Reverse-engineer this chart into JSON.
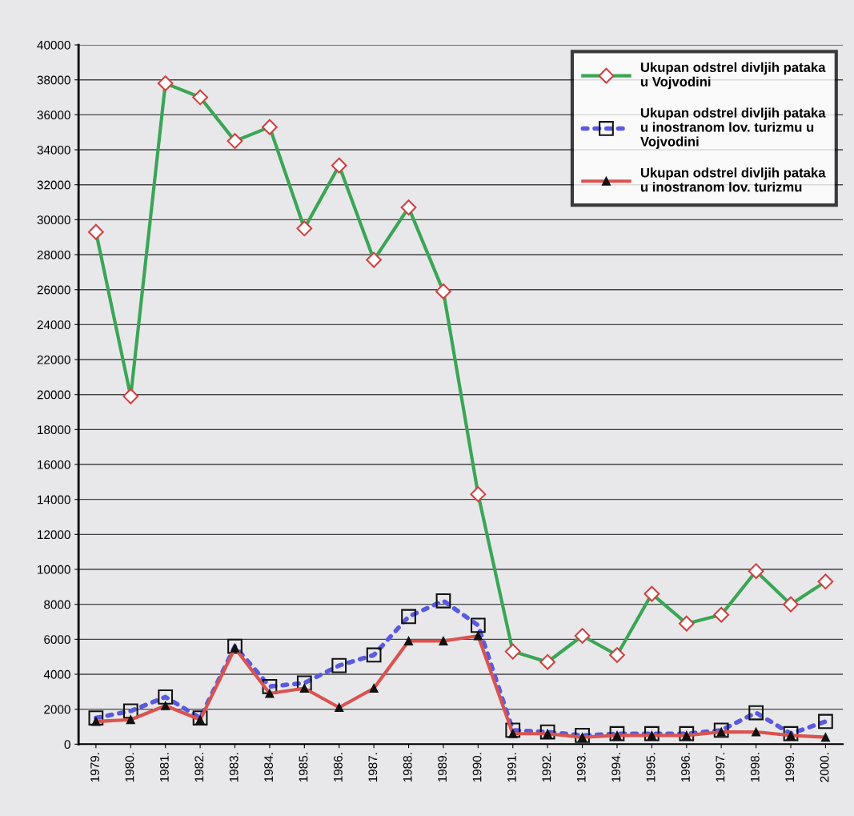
{
  "chart_data": {
    "type": "line",
    "categories": [
      "1979.",
      "1980.",
      "1981.",
      "1982.",
      "1983.",
      "1984.",
      "1985.",
      "1986.",
      "1987.",
      "1988.",
      "1989.",
      "1990.",
      "1991.",
      "1992.",
      "1993.",
      "1994.",
      "1995.",
      "1996.",
      "1997.",
      "1998.",
      "1999.",
      "2000."
    ],
    "series": [
      {
        "name": "Ukupan odstrel divljih pataka\nu Vojvodini",
        "color": "#3aa655",
        "marker": "diamond",
        "line_style": "solid",
        "values": [
          29300,
          19900,
          37800,
          37000,
          34500,
          35300,
          29500,
          33100,
          27700,
          30700,
          25900,
          14300,
          5300,
          4700,
          6200,
          5100,
          8600,
          6900,
          7400,
          9900,
          8000,
          9300
        ]
      },
      {
        "name": "Ukupan odstrel divljih pataka\nu inostranom lov. turizmu u\nVojvodini",
        "color": "#5a5ae0",
        "marker": "square",
        "line_style": "dotted",
        "values": [
          1500,
          1900,
          2700,
          1500,
          5600,
          3300,
          3500,
          4500,
          5100,
          7300,
          8200,
          6800,
          800,
          700,
          500,
          600,
          600,
          600,
          800,
          1800,
          600,
          1300
        ]
      },
      {
        "name": "Ukupan odstrel divljih pataka\nu inostranom lov. turizmu",
        "color": "#d9534f",
        "marker": "triangle",
        "line_style": "solid",
        "values": [
          1300,
          1400,
          2200,
          1400,
          5500,
          2900,
          3200,
          2100,
          3200,
          5900,
          5900,
          6200,
          600,
          600,
          400,
          500,
          500,
          500,
          700,
          700,
          500,
          400
        ]
      }
    ],
    "ylim": [
      0,
      40000
    ],
    "yticks": [
      0,
      2000,
      4000,
      6000,
      8000,
      10000,
      12000,
      14000,
      16000,
      18000,
      20000,
      22000,
      24000,
      26000,
      28000,
      30000,
      32000,
      34000,
      36000,
      38000,
      40000
    ],
    "grid": "y",
    "legend": "top right"
  }
}
